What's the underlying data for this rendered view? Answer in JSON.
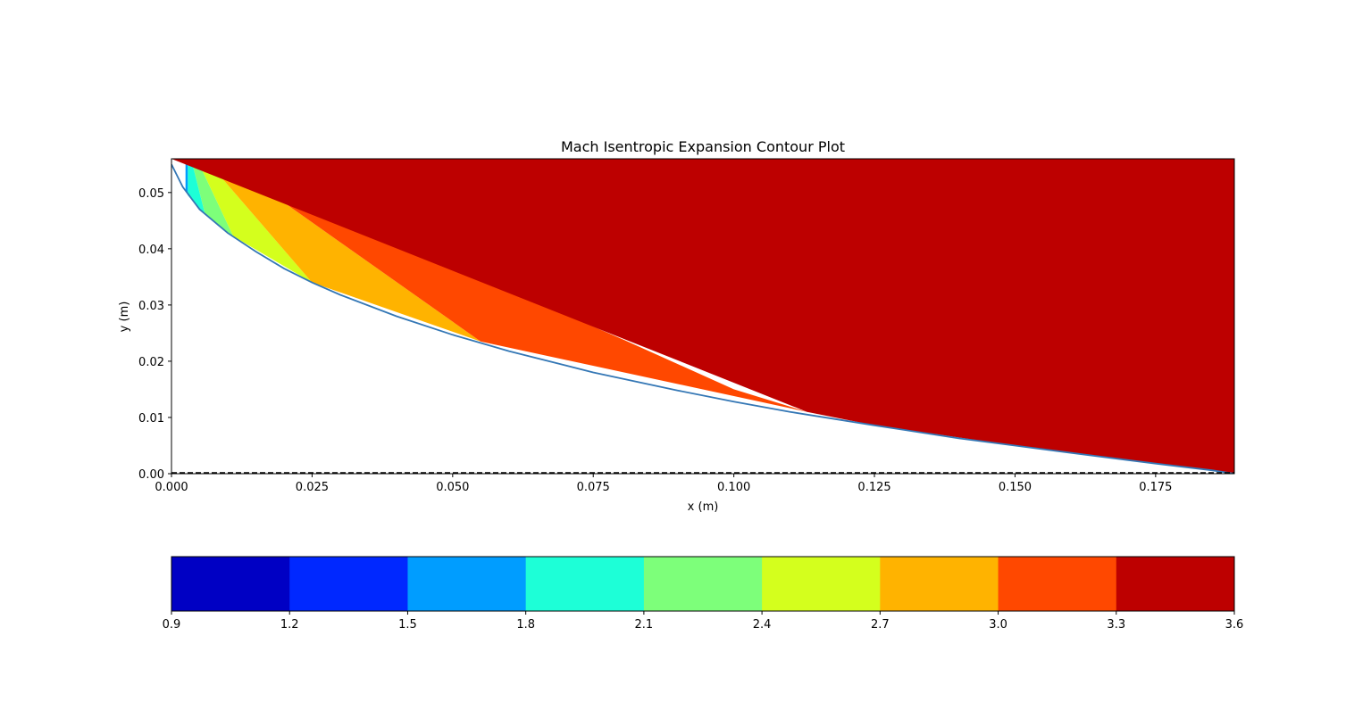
{
  "chart_data": {
    "type": "contour",
    "title": "Mach Isentropic Expansion Contour Plot",
    "xlabel": "x (m)",
    "ylabel": "y (m)",
    "xlim": [
      0.0,
      0.189
    ],
    "ylim": [
      0.0,
      0.056
    ],
    "xticks": [
      "0.000",
      "0.025",
      "0.050",
      "0.075",
      "0.100",
      "0.125",
      "0.150",
      "0.175"
    ],
    "yticks": [
      "0.00",
      "0.01",
      "0.02",
      "0.03",
      "0.04",
      "0.05"
    ],
    "grid": false,
    "colormap": "jet",
    "wall_color": "#3477b5",
    "centerline": {
      "y": 0.0,
      "style": "dashed",
      "color": "#000000"
    },
    "wall_profile": {
      "x": [
        0.0,
        0.002,
        0.005,
        0.01,
        0.015,
        0.02,
        0.025,
        0.03,
        0.04,
        0.05,
        0.06,
        0.075,
        0.09,
        0.1,
        0.11,
        0.125,
        0.14,
        0.15,
        0.16,
        0.175,
        0.185,
        0.189
      ],
      "y": [
        0.055,
        0.051,
        0.047,
        0.0428,
        0.0395,
        0.0365,
        0.034,
        0.0318,
        0.028,
        0.0247,
        0.0218,
        0.018,
        0.0148,
        0.0128,
        0.011,
        0.0086,
        0.0063,
        0.005,
        0.0037,
        0.0018,
        0.0006,
        0.0
      ]
    },
    "regions": [
      {
        "range": [
          1.5,
          1.8
        ],
        "color": "#009dff",
        "upper": {
          "x": [
            0.0025,
            0.0029
          ],
          "y": [
            0.056,
            0.056
          ]
        },
        "lower": {
          "x": [
            0.0025,
            0.0029
          ],
          "y": [
            0.0505,
            0.0495
          ]
        }
      },
      {
        "range": [
          1.8,
          2.1
        ],
        "color": "#1dffd7",
        "upper": {
          "x": [
            0.0029,
            0.0035
          ],
          "y": [
            0.056,
            0.056
          ]
        },
        "lower": {
          "x": [
            0.0029,
            0.006
          ],
          "y": [
            0.0495,
            0.046
          ]
        }
      },
      {
        "range": [
          2.1,
          2.4
        ],
        "color": "#7dff7a",
        "upper": {
          "x": [
            0.0035,
            0.0045
          ],
          "y": [
            0.056,
            0.056
          ]
        },
        "lower": {
          "x": [
            0.006,
            0.011
          ],
          "y": [
            0.046,
            0.0422
          ]
        }
      },
      {
        "range": [
          2.4,
          2.7
        ],
        "color": "#d4ff1d",
        "upper": {
          "x": [
            0.0045,
            0.006
          ],
          "y": [
            0.056,
            0.056
          ]
        },
        "lower": {
          "x": [
            0.011,
            0.025
          ],
          "y": [
            0.0422,
            0.034
          ]
        }
      },
      {
        "range": [
          2.7,
          3.0
        ],
        "color": "#ffb300",
        "upper": {
          "x": [
            0.006,
            0.009
          ],
          "y": [
            0.056,
            0.056
          ]
        },
        "lower": {
          "x": [
            0.025,
            0.055
          ],
          "y": [
            0.034,
            0.0235
          ]
        }
      },
      {
        "range": [
          3.0,
          3.3
        ],
        "color": "#ff4800",
        "upper": {
          "x": [
            0.009,
            0.05,
            0.08,
            0.1,
            0.113
          ],
          "y": [
            0.056,
            0.037,
            0.024,
            0.015,
            0.011
          ]
        },
        "lower": {
          "x": [
            0.055,
            0.113
          ],
          "y": [
            0.0235,
            0.011
          ]
        }
      },
      {
        "range": [
          3.3,
          3.6
        ],
        "color": "#bd0000",
        "upper": {
          "x": [
            0.0,
            0.189
          ],
          "y": [
            0.056,
            0.056
          ]
        },
        "lower": {
          "x": [
            0.113,
            0.125,
            0.15,
            0.175,
            0.189
          ],
          "y": [
            0.011,
            0.0086,
            0.005,
            0.0018,
            0.0
          ]
        }
      }
    ],
    "colorbar": {
      "orientation": "horizontal",
      "levels": [
        "0.9",
        "1.2",
        "1.5",
        "1.8",
        "2.1",
        "2.4",
        "2.7",
        "3.0",
        "3.3",
        "3.6"
      ],
      "colors": [
        "#0000c4",
        "#0028ff",
        "#009dff",
        "#1dffd7",
        "#7dff7a",
        "#d4ff1d",
        "#ffb300",
        "#ff4800",
        "#bd0000"
      ]
    }
  }
}
